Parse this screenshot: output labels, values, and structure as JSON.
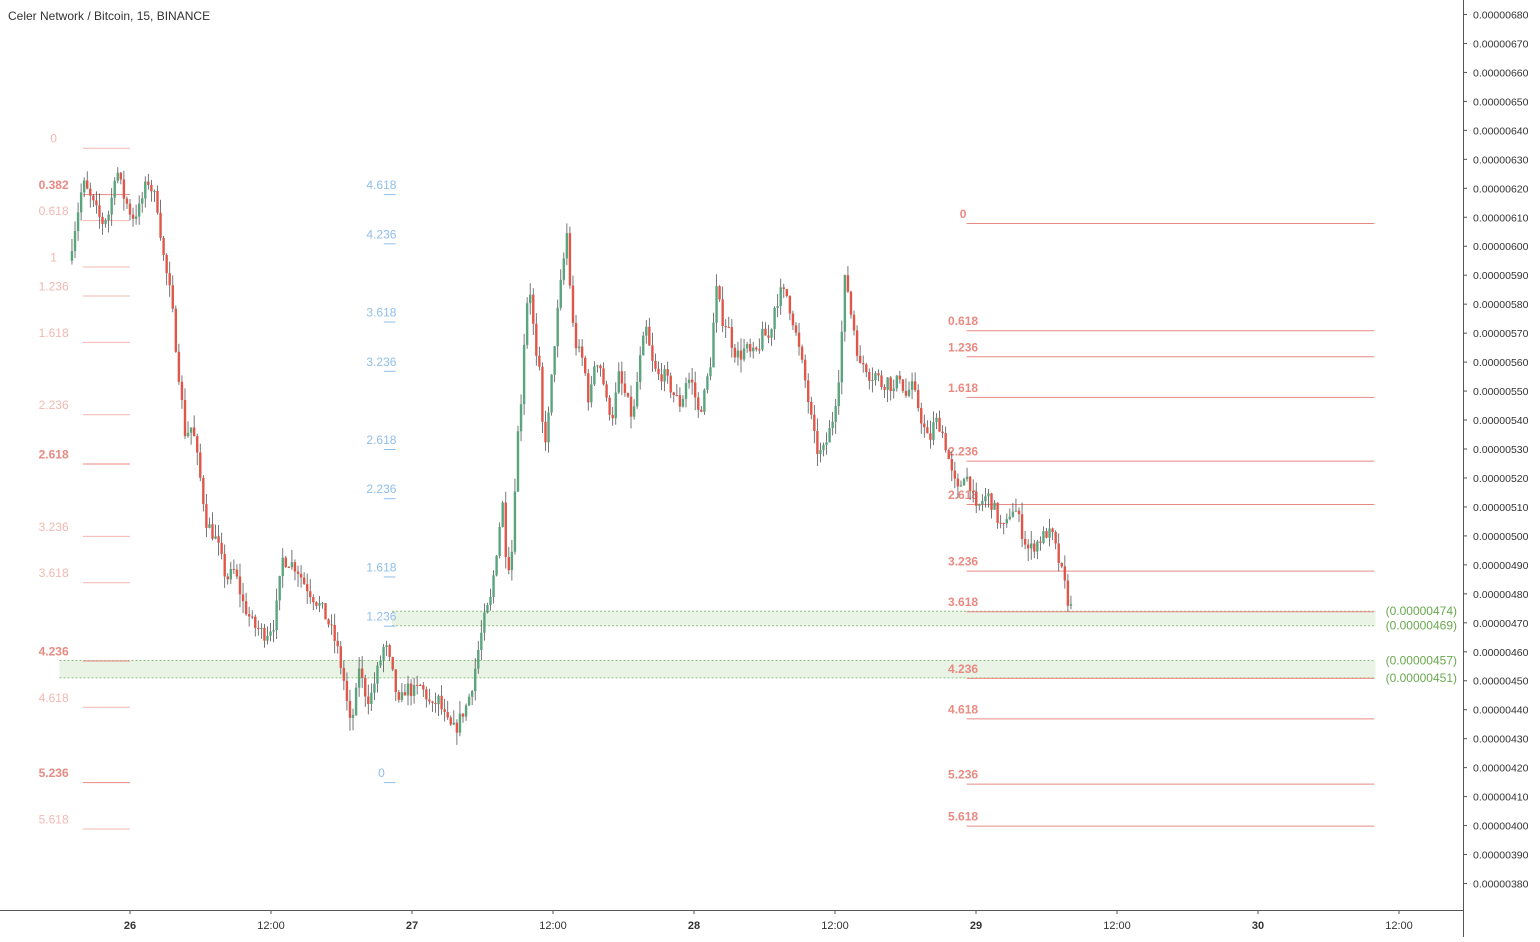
{
  "chart_data": {
    "type": "candlestick",
    "title": "Celer Network / Bitcoin, 15, BINANCE",
    "colors": {
      "up": "#5aa57e",
      "down": "#e0574a",
      "fib_red": "#e88a82",
      "fib_red_faded": "#f2b8b2",
      "fib_blue": "#8fbfe8",
      "zone_fill": "#e9f3e6",
      "zone_border": "#8fbf7f",
      "zone_label": "#6aa84f",
      "axis_text": "#333333"
    },
    "y_axis": {
      "min": 3.7e-06,
      "max": 6.85e-06,
      "ticks": [
        "0.00000380",
        "0.00000390",
        "0.00000400",
        "0.00000410",
        "0.00000420",
        "0.00000430",
        "0.00000440",
        "0.00000450",
        "0.00000460",
        "0.00000470",
        "0.00000480",
        "0.00000490",
        "0.00000500",
        "0.00000510",
        "0.00000520",
        "0.00000530",
        "0.00000540",
        "0.00000550",
        "0.00000560",
        "0.00000570",
        "0.00000580",
        "0.00000590",
        "0.00000600",
        "0.00000610",
        "0.00000620",
        "0.00000630",
        "0.00000640",
        "0.00000650",
        "0.00000660",
        "0.00000670",
        "0.00000680"
      ]
    },
    "x_axis": {
      "labels": [
        {
          "t": 4,
          "label": "26"
        },
        {
          "t": 16,
          "label": "12:00"
        },
        {
          "t": 28,
          "label": "27"
        },
        {
          "t": 40,
          "label": "12:00"
        },
        {
          "t": 52,
          "label": "28"
        },
        {
          "t": 64,
          "label": "12:00"
        },
        {
          "t": 76,
          "label": "29"
        },
        {
          "t": 88,
          "label": "12:00"
        },
        {
          "t": 100,
          "label": "30"
        },
        {
          "t": 112,
          "label": "12:00"
        }
      ]
    },
    "price_path": [
      [
        -1.2,
        5.95
      ],
      [
        0,
        6.22
      ],
      [
        0.8,
        6.15
      ],
      [
        1.6,
        6.08
      ],
      [
        2.3,
        6.12
      ],
      [
        2.8,
        6.28
      ],
      [
        3.4,
        6.18
      ],
      [
        4.2,
        6.1
      ],
      [
        4.8,
        6.13
      ],
      [
        5.5,
        6.23
      ],
      [
        6.3,
        6.15
      ],
      [
        6.9,
        5.95
      ],
      [
        7.5,
        5.82
      ],
      [
        8.1,
        5.58
      ],
      [
        8.7,
        5.35
      ],
      [
        9.3,
        5.38
      ],
      [
        9.9,
        5.22
      ],
      [
        10.5,
        5.05
      ],
      [
        11.4,
        4.98
      ],
      [
        12.2,
        4.85
      ],
      [
        12.9,
        4.88
      ],
      [
        13.6,
        4.77
      ],
      [
        14.5,
        4.69
      ],
      [
        15.5,
        4.66
      ],
      [
        16.3,
        4.7
      ],
      [
        17.0,
        4.92
      ],
      [
        17.6,
        4.91
      ],
      [
        18.2,
        4.89
      ],
      [
        18.8,
        4.84
      ],
      [
        19.6,
        4.79
      ],
      [
        20.3,
        4.75
      ],
      [
        21.0,
        4.69
      ],
      [
        21.6,
        4.62
      ],
      [
        22.2,
        4.5
      ],
      [
        22.7,
        4.35
      ],
      [
        23.1,
        4.4
      ],
      [
        23.5,
        4.55
      ],
      [
        23.9,
        4.47
      ],
      [
        24.4,
        4.43
      ],
      [
        25.1,
        4.54
      ],
      [
        25.7,
        4.63
      ],
      [
        26.3,
        4.53
      ],
      [
        26.9,
        4.41
      ],
      [
        27.5,
        4.48
      ],
      [
        28.1,
        4.46
      ],
      [
        28.7,
        4.48
      ],
      [
        29.2,
        4.45
      ],
      [
        29.7,
        4.4
      ],
      [
        30.2,
        4.44
      ],
      [
        30.7,
        4.38
      ],
      [
        31.2,
        4.34
      ],
      [
        31.7,
        4.33
      ],
      [
        32.2,
        4.38
      ],
      [
        32.7,
        4.42
      ],
      [
        33.2,
        4.5
      ],
      [
        33.7,
        4.62
      ],
      [
        34.2,
        4.72
      ],
      [
        34.7,
        4.78
      ],
      [
        35.2,
        4.95
      ],
      [
        35.7,
        5.12
      ],
      [
        36.1,
        4.88
      ],
      [
        36.5,
        4.95
      ],
      [
        36.9,
        5.3
      ],
      [
        37.3,
        5.48
      ],
      [
        37.7,
        5.8
      ],
      [
        38.1,
        5.85
      ],
      [
        38.5,
        5.62
      ],
      [
        38.9,
        5.55
      ],
      [
        39.2,
        5.3
      ],
      [
        39.6,
        5.4
      ],
      [
        40.2,
        5.7
      ],
      [
        40.7,
        5.88
      ],
      [
        41.2,
        6.05
      ],
      [
        41.6,
        5.75
      ],
      [
        42.0,
        5.65
      ],
      [
        42.6,
        5.6
      ],
      [
        43.1,
        5.45
      ],
      [
        43.6,
        5.62
      ],
      [
        44.1,
        5.58
      ],
      [
        44.6,
        5.45
      ],
      [
        45.1,
        5.42
      ],
      [
        45.6,
        5.55
      ],
      [
        46.2,
        5.48
      ],
      [
        46.8,
        5.4
      ],
      [
        47.3,
        5.58
      ],
      [
        47.9,
        5.72
      ],
      [
        48.4,
        5.6
      ],
      [
        48.9,
        5.55
      ],
      [
        49.4,
        5.56
      ],
      [
        49.9,
        5.52
      ],
      [
        50.4,
        5.48
      ],
      [
        50.9,
        5.45
      ],
      [
        51.4,
        5.55
      ],
      [
        51.9,
        5.52
      ],
      [
        52.4,
        5.42
      ],
      [
        52.9,
        5.49
      ],
      [
        53.4,
        5.6
      ],
      [
        53.9,
        5.85
      ],
      [
        54.4,
        5.75
      ],
      [
        54.9,
        5.72
      ],
      [
        55.4,
        5.64
      ],
      [
        55.9,
        5.62
      ],
      [
        56.4,
        5.65
      ],
      [
        56.9,
        5.62
      ],
      [
        57.4,
        5.64
      ],
      [
        57.9,
        5.7
      ],
      [
        58.4,
        5.68
      ],
      [
        58.9,
        5.8
      ],
      [
        59.4,
        5.84
      ],
      [
        59.9,
        5.83
      ],
      [
        60.4,
        5.75
      ],
      [
        60.9,
        5.65
      ],
      [
        61.4,
        5.55
      ],
      [
        61.9,
        5.42
      ],
      [
        62.4,
        5.3
      ],
      [
        62.9,
        5.28
      ],
      [
        63.4,
        5.34
      ],
      [
        63.9,
        5.42
      ],
      [
        64.4,
        5.58
      ],
      [
        64.9,
        5.92
      ],
      [
        65.3,
        5.78
      ],
      [
        65.7,
        5.7
      ],
      [
        66.1,
        5.58
      ],
      [
        66.5,
        5.6
      ],
      [
        67.0,
        5.55
      ],
      [
        67.5,
        5.56
      ],
      [
        68.0,
        5.52
      ],
      [
        68.5,
        5.54
      ],
      [
        69.0,
        5.5
      ],
      [
        69.5,
        5.56
      ],
      [
        70.0,
        5.48
      ],
      [
        70.5,
        5.52
      ],
      [
        71.0,
        5.46
      ],
      [
        71.5,
        5.38
      ],
      [
        72.0,
        5.32
      ],
      [
        72.5,
        5.4
      ],
      [
        73.0,
        5.38
      ],
      [
        73.5,
        5.3
      ],
      [
        74.0,
        5.2
      ],
      [
        74.5,
        5.15
      ],
      [
        75.0,
        5.22
      ],
      [
        75.5,
        5.18
      ],
      [
        76.0,
        5.08
      ],
      [
        76.5,
        5.12
      ],
      [
        77.0,
        5.14
      ],
      [
        77.5,
        5.1
      ],
      [
        78.0,
        5.04
      ],
      [
        78.5,
        5.02
      ],
      [
        79.0,
        5.1
      ],
      [
        79.5,
        5.08
      ],
      [
        80.0,
        5.0
      ],
      [
        80.5,
        4.95
      ],
      [
        81.0,
        4.97
      ],
      [
        81.5,
        4.99
      ],
      [
        82.0,
        5.01
      ],
      [
        82.5,
        5.0
      ],
      [
        83.0,
        4.92
      ],
      [
        83.5,
        4.84
      ],
      [
        83.8,
        4.78
      ],
      [
        84.1,
        4.75
      ]
    ],
    "fib_red_left": {
      "label_x_t": -2.5,
      "line_t": [
        0,
        4
      ],
      "levels": [
        {
          "label": "0",
          "value": 6.34,
          "faded": true
        },
        {
          "label": "0.382",
          "value": 6.18,
          "faded": false
        },
        {
          "label": "0.618",
          "value": 6.09,
          "faded": true
        },
        {
          "label": "1",
          "value": 5.93,
          "faded": true
        },
        {
          "label": "1.236",
          "value": 5.83,
          "faded": true
        },
        {
          "label": "1.618",
          "value": 5.67,
          "faded": true
        },
        {
          "label": "2.236",
          "value": 5.42,
          "faded": true
        },
        {
          "label": "2.618",
          "value": 5.25,
          "faded": false
        },
        {
          "label": "3.236",
          "value": 5.0,
          "faded": true
        },
        {
          "label": "3.618",
          "value": 4.84,
          "faded": true
        },
        {
          "label": "4.236",
          "value": 4.57,
          "faded": false
        },
        {
          "label": "4.618",
          "value": 4.41,
          "faded": true
        },
        {
          "label": "5.236",
          "value": 4.15,
          "faded": false
        },
        {
          "label": "5.618",
          "value": 3.99,
          "faded": true
        }
      ]
    },
    "fib_blue": {
      "label_x_t": 25.4,
      "line_t": [
        25.6,
        26.6
      ],
      "levels": [
        {
          "label": "0",
          "value": 4.15
        },
        {
          "label": "1.236",
          "value": 4.69
        },
        {
          "label": "1.618",
          "value": 4.86
        },
        {
          "label": "2.236",
          "value": 5.13
        },
        {
          "label": "2.618",
          "value": 5.3
        },
        {
          "label": "3.236",
          "value": 5.57
        },
        {
          "label": "3.618",
          "value": 5.74
        },
        {
          "label": "4.236",
          "value": 6.01
        },
        {
          "label": "4.618",
          "value": 6.18
        }
      ]
    },
    "fib_red_right": {
      "label_x_t": 74.9,
      "line_t": [
        75.2,
        109.9
      ],
      "levels": [
        {
          "label": "0",
          "value": 6.08
        },
        {
          "label": "0.618",
          "value": 5.71
        },
        {
          "label": "1.236",
          "value": 5.62
        },
        {
          "label": "1.618",
          "value": 5.48
        },
        {
          "label": "2.236",
          "value": 5.26
        },
        {
          "label": "2.618",
          "value": 5.11
        },
        {
          "label": "3.236",
          "value": 4.88
        },
        {
          "label": "3.618",
          "value": 4.74
        },
        {
          "label": "4.236",
          "value": 4.51
        },
        {
          "label": "4.618",
          "value": 4.37
        },
        {
          "label": "5.236",
          "value": 4.145
        },
        {
          "label": "5.618",
          "value": 4.0
        }
      ]
    },
    "zones": [
      {
        "top": 4.74,
        "bottom": 4.69,
        "t_from": 26.3,
        "t_to": 110,
        "top_label": "(0.00000474)",
        "bottom_label": "(0.00000469)"
      },
      {
        "top": 4.57,
        "bottom": 4.51,
        "t_from": -2.0,
        "t_to": 110,
        "top_label": "(0.00000457)",
        "bottom_label": "(0.00000451)"
      }
    ]
  }
}
